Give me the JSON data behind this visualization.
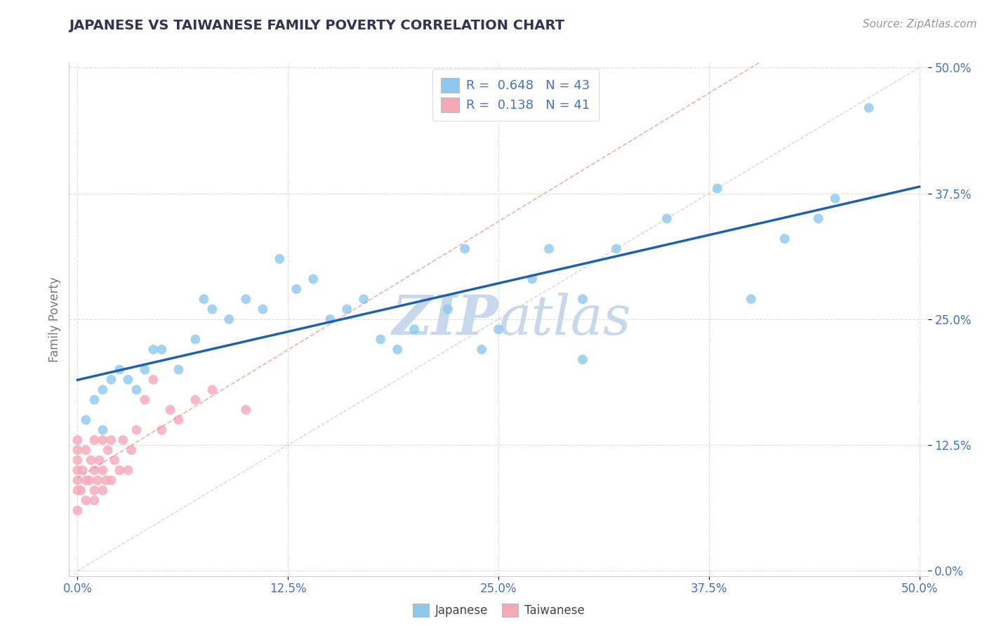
{
  "title": "JAPANESE VS TAIWANESE FAMILY POVERTY CORRELATION CHART",
  "source_text": "Source: ZipAtlas.com",
  "ylabel": "Family Poverty",
  "xlim": [
    -0.005,
    0.505
  ],
  "ylim": [
    -0.005,
    0.505
  ],
  "xtick_vals": [
    0.0,
    0.125,
    0.25,
    0.375,
    0.5
  ],
  "ytick_vals": [
    0.0,
    0.125,
    0.25,
    0.375,
    0.5
  ],
  "japanese_r": 0.648,
  "japanese_n": 43,
  "taiwanese_r": 0.138,
  "taiwanese_n": 41,
  "japanese_color": "#8DC8EE",
  "taiwanese_color": "#F5A8B8",
  "regression_line_color": "#2060B0",
  "taiwanese_regression_color": "#E09090",
  "diagonal_line_color": "#CCCCCC",
  "watermark_color": "#C8D8EC",
  "title_color": "#333355",
  "axis_label_color": "#4472C4",
  "legend_r_color": "#4472C4",
  "japanese_x": [
    0.005,
    0.01,
    0.015,
    0.015,
    0.02,
    0.025,
    0.03,
    0.035,
    0.04,
    0.045,
    0.05,
    0.06,
    0.07,
    0.075,
    0.08,
    0.09,
    0.1,
    0.11,
    0.12,
    0.13,
    0.14,
    0.15,
    0.16,
    0.17,
    0.18,
    0.19,
    0.2,
    0.22,
    0.23,
    0.24,
    0.25,
    0.27,
    0.28,
    0.3,
    0.3,
    0.32,
    0.35,
    0.38,
    0.4,
    0.42,
    0.44,
    0.45,
    0.47
  ],
  "japanese_y": [
    0.15,
    0.17,
    0.14,
    0.18,
    0.19,
    0.2,
    0.19,
    0.18,
    0.2,
    0.22,
    0.22,
    0.2,
    0.23,
    0.27,
    0.26,
    0.25,
    0.27,
    0.26,
    0.31,
    0.28,
    0.29,
    0.25,
    0.26,
    0.27,
    0.23,
    0.22,
    0.24,
    0.26,
    0.32,
    0.22,
    0.24,
    0.29,
    0.32,
    0.21,
    0.27,
    0.32,
    0.35,
    0.38,
    0.27,
    0.33,
    0.35,
    0.37,
    0.46
  ],
  "taiwanese_x": [
    0.0,
    0.0,
    0.0,
    0.0,
    0.0,
    0.0,
    0.0,
    0.002,
    0.003,
    0.005,
    0.005,
    0.005,
    0.007,
    0.008,
    0.01,
    0.01,
    0.01,
    0.01,
    0.012,
    0.013,
    0.015,
    0.015,
    0.015,
    0.017,
    0.018,
    0.02,
    0.02,
    0.022,
    0.025,
    0.027,
    0.03,
    0.032,
    0.035,
    0.04,
    0.045,
    0.05,
    0.055,
    0.06,
    0.07,
    0.08,
    0.1
  ],
  "taiwanese_y": [
    0.06,
    0.08,
    0.09,
    0.1,
    0.11,
    0.12,
    0.13,
    0.08,
    0.1,
    0.07,
    0.09,
    0.12,
    0.09,
    0.11,
    0.07,
    0.08,
    0.1,
    0.13,
    0.09,
    0.11,
    0.08,
    0.1,
    0.13,
    0.09,
    0.12,
    0.09,
    0.13,
    0.11,
    0.1,
    0.13,
    0.1,
    0.12,
    0.14,
    0.17,
    0.19,
    0.14,
    0.16,
    0.15,
    0.17,
    0.18,
    0.16
  ],
  "legend_japanese_label": "Japanese",
  "legend_taiwanese_label": "Taiwanese"
}
